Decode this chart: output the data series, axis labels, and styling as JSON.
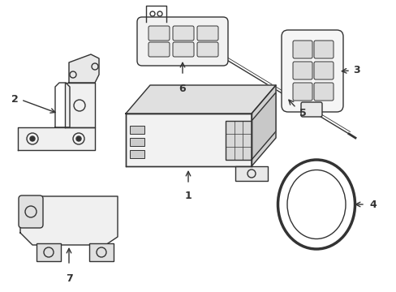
{
  "background_color": "#ffffff",
  "line_color": "#333333",
  "line_width": 1.0,
  "fig_width": 4.89,
  "fig_height": 3.6,
  "dpi": 100
}
